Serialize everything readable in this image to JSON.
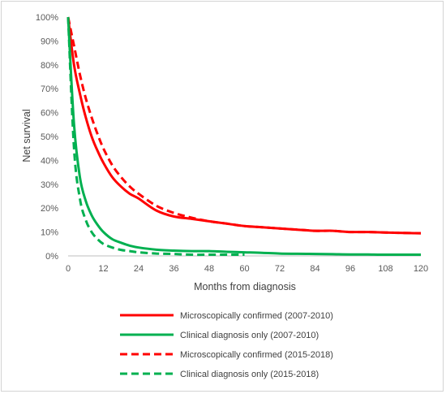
{
  "chart_data": {
    "type": "line",
    "title": "",
    "xlabel": "Months from diagnosis",
    "ylabel": "Net survival",
    "xlim": [
      0,
      120
    ],
    "ylim": [
      0,
      100
    ],
    "x_ticks": [
      "0",
      "12",
      "24",
      "36",
      "48",
      "60",
      "72",
      "84",
      "96",
      "108",
      "120"
    ],
    "y_ticks": [
      "0%",
      "10%",
      "20%",
      "30%",
      "40%",
      "50%",
      "60%",
      "70%",
      "80%",
      "90%",
      "100%"
    ],
    "grid": false,
    "legend_position": "bottom",
    "series": [
      {
        "name": "Microscopically confirmed (2007-2010)",
        "color": "#ff0000",
        "dashed": false,
        "x": [
          0,
          2,
          4,
          6,
          8,
          10,
          12,
          15,
          18,
          21,
          24,
          30,
          36,
          42,
          48,
          54,
          60,
          66,
          72,
          78,
          84,
          90,
          96,
          102,
          108,
          114,
          120
        ],
        "y": [
          100,
          80,
          68,
          58,
          50,
          44,
          39,
          33,
          29,
          26,
          24,
          19,
          16.5,
          15.5,
          14.5,
          13.5,
          12.5,
          12,
          11.5,
          11,
          10.5,
          10.5,
          10,
          10,
          9.8,
          9.6,
          9.5
        ]
      },
      {
        "name": "Clinical diagnosis only (2007-2010)",
        "color": "#00b050",
        "dashed": false,
        "x": [
          0,
          2,
          4,
          6,
          8,
          10,
          12,
          15,
          18,
          21,
          24,
          30,
          36,
          42,
          48,
          54,
          60,
          66,
          72,
          78,
          84,
          90,
          96,
          102,
          108,
          114,
          120
        ],
        "y": [
          100,
          55,
          33,
          23,
          17,
          13,
          10,
          7,
          5.5,
          4.3,
          3.5,
          2.6,
          2.2,
          2,
          2,
          1.7,
          1.5,
          1.3,
          1,
          0.9,
          0.8,
          0.7,
          0.6,
          0.6,
          0.5,
          0.5,
          0.5
        ]
      },
      {
        "name": "Microscopically confirmed (2015-2018)",
        "color": "#ff0000",
        "dashed": true,
        "x": [
          0,
          2,
          4,
          6,
          8,
          10,
          12,
          15,
          18,
          21,
          24,
          30,
          36,
          42,
          48,
          54,
          60,
          66,
          72,
          78,
          84,
          90,
          96,
          102,
          108,
          114,
          120
        ],
        "y": [
          100,
          88,
          76,
          66,
          58,
          51,
          45,
          38,
          33,
          29,
          26,
          21,
          18,
          16,
          14.5,
          13.5,
          12.5,
          12,
          11.5,
          11,
          10.5,
          10.5,
          10,
          10,
          9.8,
          9.6,
          9.5
        ]
      },
      {
        "name": "Clinical diagnosis only (2015-2018)",
        "color": "#00b050",
        "dashed": true,
        "x": [
          0,
          2,
          4,
          6,
          8,
          10,
          12,
          15,
          18,
          21,
          24,
          30,
          36,
          42,
          48,
          54,
          60
        ],
        "y": [
          100,
          45,
          24,
          15,
          10,
          7,
          5,
          3.5,
          2.5,
          2,
          1.5,
          1,
          0.8,
          0.5,
          0.5,
          0.5,
          0.5
        ]
      }
    ]
  }
}
